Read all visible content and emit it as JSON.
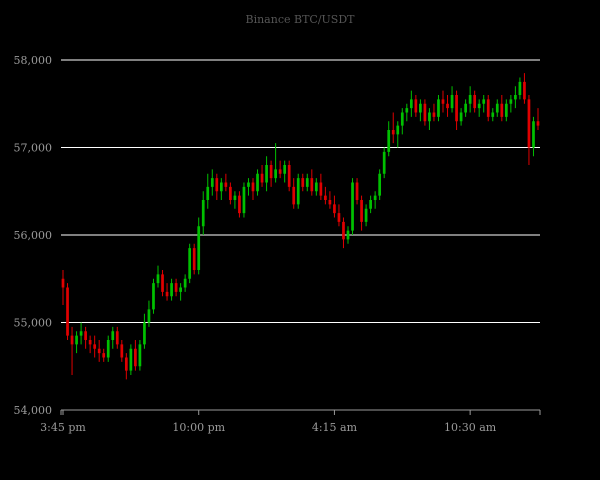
{
  "chart_data": {
    "type": "candlestick",
    "title": "Binance BTC/USDT",
    "xlabel": "",
    "ylabel": "",
    "ylim": [
      54000,
      58000
    ],
    "y_ticks": [
      "54,000",
      "55,000",
      "56,000",
      "57,000",
      "58,000"
    ],
    "y_tick_values": [
      54000,
      55000,
      56000,
      57000,
      58000
    ],
    "x_ticks": [
      "3:45 pm",
      "10:00 pm",
      "4:15 am",
      "10:30 am"
    ],
    "x_tick_index": [
      0,
      30,
      60,
      90
    ],
    "grid": true,
    "legend": "none",
    "colors": {
      "up": "#00c000",
      "down": "#e00000",
      "background": "#000000",
      "grid": "#ffffff",
      "axis": "#9a9a9a"
    },
    "series": [
      {
        "name": "",
        "candles": [
          [
            55500,
            55600,
            55200,
            55400
          ],
          [
            55400,
            55450,
            54800,
            54850
          ],
          [
            54850,
            54950,
            54400,
            54750
          ],
          [
            54750,
            54900,
            54650,
            54850
          ],
          [
            54850,
            55000,
            54750,
            54900
          ],
          [
            54900,
            54950,
            54700,
            54800
          ],
          [
            54800,
            54850,
            54650,
            54750
          ],
          [
            54750,
            54850,
            54600,
            54700
          ],
          [
            54700,
            54800,
            54550,
            54650
          ],
          [
            54650,
            54700,
            54550,
            54600
          ],
          [
            54600,
            54850,
            54550,
            54800
          ],
          [
            54800,
            54950,
            54700,
            54900
          ],
          [
            54900,
            54950,
            54700,
            54750
          ],
          [
            54750,
            54800,
            54550,
            54600
          ],
          [
            54600,
            54650,
            54350,
            54450
          ],
          [
            54450,
            54750,
            54400,
            54700
          ],
          [
            54700,
            54800,
            54450,
            54500
          ],
          [
            54500,
            54800,
            54450,
            54750
          ],
          [
            54750,
            55100,
            54700,
            55000
          ],
          [
            55000,
            55250,
            54950,
            55150
          ],
          [
            55150,
            55500,
            55100,
            55450
          ],
          [
            55450,
            55650,
            55400,
            55550
          ],
          [
            55550,
            55600,
            55300,
            55350
          ],
          [
            55350,
            55450,
            55250,
            55300
          ],
          [
            55300,
            55500,
            55250,
            55450
          ],
          [
            55450,
            55500,
            55300,
            55350
          ],
          [
            55350,
            55450,
            55250,
            55400
          ],
          [
            55400,
            55550,
            55350,
            55500
          ],
          [
            55500,
            55900,
            55450,
            55850
          ],
          [
            55850,
            55900,
            55550,
            55600
          ],
          [
            55600,
            56200,
            55550,
            56100
          ],
          [
            56100,
            56500,
            56000,
            56400
          ],
          [
            56400,
            56700,
            56300,
            56550
          ],
          [
            56550,
            56750,
            56450,
            56650
          ],
          [
            56650,
            56700,
            56400,
            56500
          ],
          [
            56500,
            56650,
            56400,
            56600
          ],
          [
            56600,
            56700,
            56500,
            56550
          ],
          [
            56550,
            56600,
            56350,
            56400
          ],
          [
            56400,
            56500,
            56300,
            56450
          ],
          [
            56450,
            56500,
            56200,
            56250
          ],
          [
            56250,
            56600,
            56200,
            56550
          ],
          [
            56550,
            56650,
            56450,
            56600
          ],
          [
            56600,
            56650,
            56400,
            56500
          ],
          [
            56500,
            56750,
            56450,
            56700
          ],
          [
            56700,
            56800,
            56550,
            56600
          ],
          [
            56600,
            56900,
            56500,
            56800
          ],
          [
            56800,
            56850,
            56550,
            56650
          ],
          [
            56650,
            57050,
            56600,
            56750
          ],
          [
            56750,
            56850,
            56650,
            56700
          ],
          [
            56700,
            56850,
            56600,
            56800
          ],
          [
            56800,
            56850,
            56500,
            56550
          ],
          [
            56550,
            56650,
            56300,
            56350
          ],
          [
            56350,
            56700,
            56300,
            56650
          ],
          [
            56650,
            56700,
            56500,
            56550
          ],
          [
            56550,
            56700,
            56500,
            56650
          ],
          [
            56650,
            56750,
            56450,
            56500
          ],
          [
            56500,
            56650,
            56450,
            56600
          ],
          [
            56600,
            56700,
            56400,
            56450
          ],
          [
            56450,
            56550,
            56350,
            56400
          ],
          [
            56400,
            56500,
            56300,
            56350
          ],
          [
            56350,
            56450,
            56200,
            56250
          ],
          [
            56250,
            56350,
            56100,
            56150
          ],
          [
            56150,
            56200,
            55850,
            55950
          ],
          [
            55950,
            56100,
            55900,
            56050
          ],
          [
            56050,
            56650,
            56000,
            56600
          ],
          [
            56600,
            56650,
            56350,
            56400
          ],
          [
            56400,
            56450,
            56050,
            56150
          ],
          [
            56150,
            56350,
            56100,
            56300
          ],
          [
            56300,
            56450,
            56250,
            56400
          ],
          [
            56400,
            56500,
            56300,
            56450
          ],
          [
            56450,
            56750,
            56400,
            56700
          ],
          [
            56700,
            57000,
            56650,
            56950
          ],
          [
            56950,
            57300,
            56900,
            57200
          ],
          [
            57200,
            57400,
            57050,
            57150
          ],
          [
            57150,
            57300,
            57000,
            57250
          ],
          [
            57250,
            57450,
            57150,
            57400
          ],
          [
            57400,
            57500,
            57300,
            57450
          ],
          [
            57450,
            57650,
            57350,
            57550
          ],
          [
            57550,
            57600,
            57350,
            57400
          ],
          [
            57400,
            57550,
            57300,
            57500
          ],
          [
            57500,
            57550,
            57250,
            57300
          ],
          [
            57300,
            57450,
            57200,
            57400
          ],
          [
            57400,
            57500,
            57300,
            57350
          ],
          [
            57350,
            57600,
            57300,
            57550
          ],
          [
            57550,
            57650,
            57400,
            57500
          ],
          [
            57500,
            57600,
            57350,
            57450
          ],
          [
            57450,
            57700,
            57400,
            57600
          ],
          [
            57600,
            57650,
            57200,
            57300
          ],
          [
            57300,
            57450,
            57250,
            57400
          ],
          [
            57400,
            57550,
            57350,
            57500
          ],
          [
            57500,
            57700,
            57400,
            57600
          ],
          [
            57600,
            57650,
            57400,
            57450
          ],
          [
            57450,
            57550,
            57350,
            57500
          ],
          [
            57500,
            57600,
            57400,
            57550
          ],
          [
            57550,
            57600,
            57300,
            57350
          ],
          [
            57350,
            57450,
            57300,
            57400
          ],
          [
            57400,
            57550,
            57350,
            57500
          ],
          [
            57500,
            57600,
            57300,
            57350
          ],
          [
            57350,
            57550,
            57300,
            57500
          ],
          [
            57500,
            57600,
            57400,
            57550
          ],
          [
            57550,
            57700,
            57450,
            57600
          ],
          [
            57600,
            57800,
            57550,
            57750
          ],
          [
            57750,
            57850,
            57500,
            57550
          ],
          [
            57550,
            57600,
            56800,
            57000
          ],
          [
            57000,
            57350,
            56900,
            57300
          ],
          [
            57300,
            57450,
            57200,
            57250
          ]
        ]
      }
    ]
  }
}
